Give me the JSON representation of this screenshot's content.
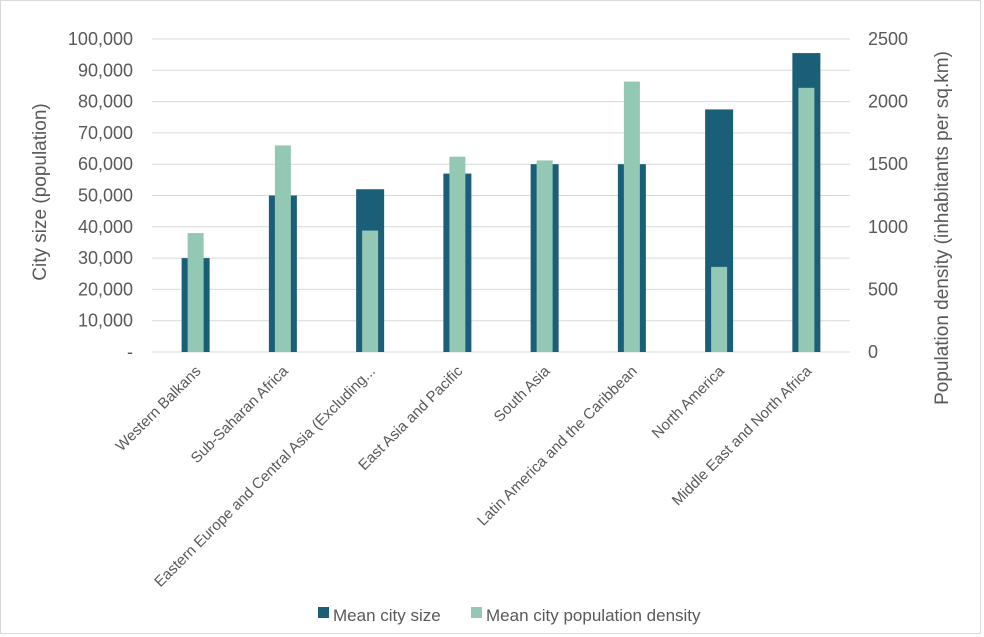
{
  "chart_data": {
    "type": "bar",
    "categories": [
      "Western Balkans",
      "Sub-Saharan Africa",
      "Eastern Europe and Central Asia (Excluding...",
      "East Asia and Pacific",
      "South Asia",
      "Latin America and the Caribbean",
      "North America",
      "Middle East and North Africa"
    ],
    "series": [
      {
        "name": "Mean city size",
        "axis": "left",
        "color": "#1b5e78",
        "values": [
          30000,
          50000,
          52000,
          57000,
          60000,
          60000,
          77500,
          95500
        ]
      },
      {
        "name": "Mean city population density",
        "axis": "right",
        "color": "#92c8b4",
        "values": [
          950,
          1650,
          970,
          1560,
          1530,
          2160,
          680,
          2110
        ]
      }
    ],
    "ylabel_left": "City size (population)",
    "ylabel_right": "Population density (inhabitants per sq.km)",
    "ylim_left": [
      0,
      100000
    ],
    "ylim_right": [
      0,
      2500
    ],
    "yticks_left": [
      "-",
      "10,000",
      "20,000",
      "30,000",
      "40,000",
      "50,000",
      "60,000",
      "70,000",
      "80,000",
      "90,000",
      "100,000"
    ],
    "yticks_right": [
      "0",
      "500",
      "1000",
      "1500",
      "2000",
      "2500"
    ],
    "grid": true,
    "legend_position": "bottom"
  }
}
